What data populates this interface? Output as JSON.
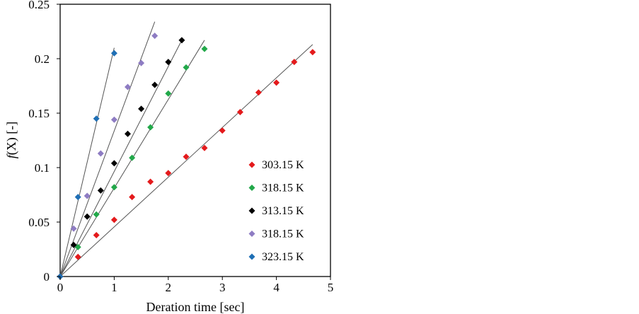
{
  "chart_data": {
    "type": "scatter",
    "xlabel": "Deration time [sec]",
    "ylabel_italic": "f",
    "ylabel_rest": "(X) [-]",
    "xlim": [
      0,
      5
    ],
    "ylim": [
      0,
      0.25
    ],
    "xticks": [
      "0",
      "1",
      "2",
      "3",
      "4",
      "5"
    ],
    "yticks": [
      "0",
      "0.05",
      "0.1",
      "0.15",
      "0.2",
      "0.25"
    ],
    "grid": false,
    "legend_position": "center-right",
    "series": [
      {
        "name": "303.15 K",
        "color": "#e41a1c",
        "x": [
          0,
          0.33,
          0.67,
          1.0,
          1.33,
          1.67,
          2.0,
          2.33,
          2.67,
          3.0,
          3.33,
          3.67,
          4.0,
          4.33,
          4.67
        ],
        "y": [
          0,
          0.018,
          0.038,
          0.052,
          0.073,
          0.087,
          0.095,
          0.11,
          0.118,
          0.134,
          0.151,
          0.169,
          0.178,
          0.197,
          0.206
        ],
        "fit": [
          [
            0,
            0
          ],
          [
            4.67,
            0.213
          ]
        ]
      },
      {
        "name": "318.15 K",
        "color": "#22a84a",
        "x": [
          0,
          0.33,
          0.67,
          1.0,
          1.33,
          1.67,
          2.0,
          2.33,
          2.67
        ],
        "y": [
          0,
          0.027,
          0.057,
          0.082,
          0.109,
          0.137,
          0.168,
          0.192,
          0.209
        ],
        "fit": [
          [
            0,
            0
          ],
          [
            2.67,
            0.217
          ]
        ]
      },
      {
        "name": "313.15 K",
        "color": "#000000",
        "x": [
          0,
          0.25,
          0.5,
          0.75,
          1.0,
          1.25,
          1.5,
          1.75,
          2.0,
          2.25
        ],
        "y": [
          0,
          0.029,
          0.055,
          0.079,
          0.104,
          0.131,
          0.154,
          0.176,
          0.197,
          0.217
        ],
        "fit": [
          [
            0,
            0
          ],
          [
            2.25,
            0.217
          ]
        ]
      },
      {
        "name": "318.15 K",
        "color": "#8e7cc3",
        "x": [
          0,
          0.25,
          0.5,
          0.75,
          1.0,
          1.25,
          1.5,
          1.75
        ],
        "y": [
          0,
          0.044,
          0.074,
          0.113,
          0.144,
          0.174,
          0.196,
          0.221
        ],
        "fit": [
          [
            0,
            0
          ],
          [
            1.75,
            0.234
          ]
        ]
      },
      {
        "name": "323.15 K",
        "color": "#1f6fb5",
        "x": [
          0,
          0.33,
          0.67,
          1.0
        ],
        "y": [
          0,
          0.073,
          0.145,
          0.205
        ],
        "fit": [
          [
            0,
            0
          ],
          [
            1.0,
            0.21
          ]
        ]
      }
    ]
  }
}
